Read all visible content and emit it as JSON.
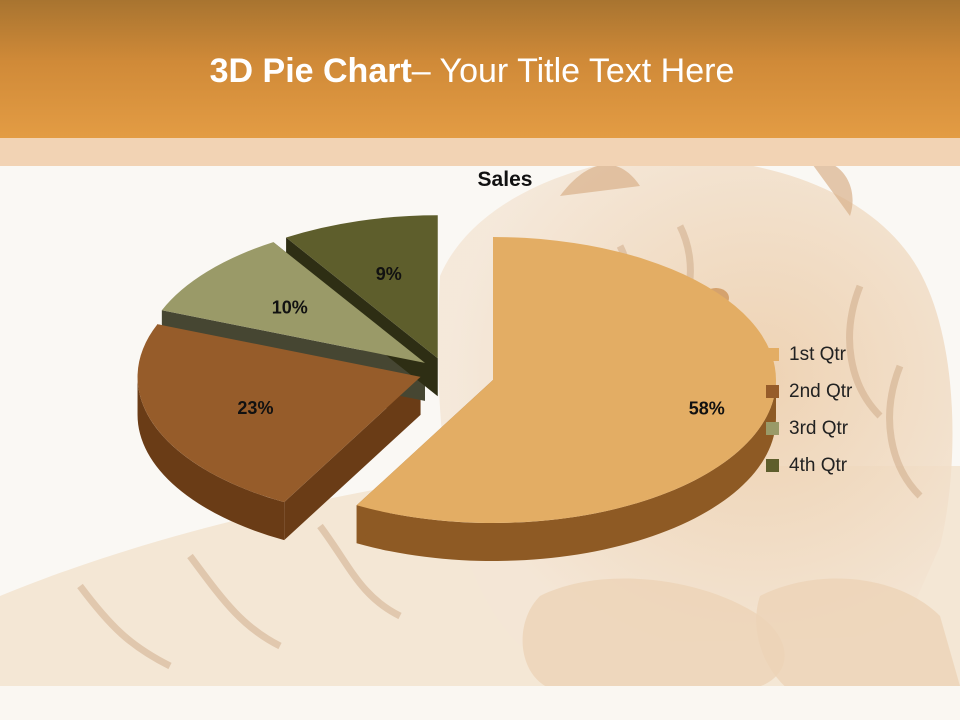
{
  "slide": {
    "title_bold": "3D Pie Chart",
    "title_rest": "– Your Title Text Here"
  },
  "colors": {
    "header": "#d8903c",
    "band": "#f2d3b4"
  },
  "chart_data": {
    "type": "pie",
    "title": "Sales",
    "categories": [
      "1st Qtr",
      "2nd Qtr",
      "3rd Qtr",
      "4th Qtr"
    ],
    "values": [
      58,
      23,
      10,
      9
    ],
    "data_labels": [
      "58%",
      "23%",
      "10%",
      "9%"
    ],
    "colors": [
      "#e3ad64",
      "#965c2a",
      "#9a9a68",
      "#5e5e2c"
    ],
    "side_colors": [
      "#8e5a24",
      "#6a3c16",
      "#464632",
      "#2e2e14"
    ],
    "exploded": true,
    "three_d": true,
    "legend_position": "right"
  }
}
